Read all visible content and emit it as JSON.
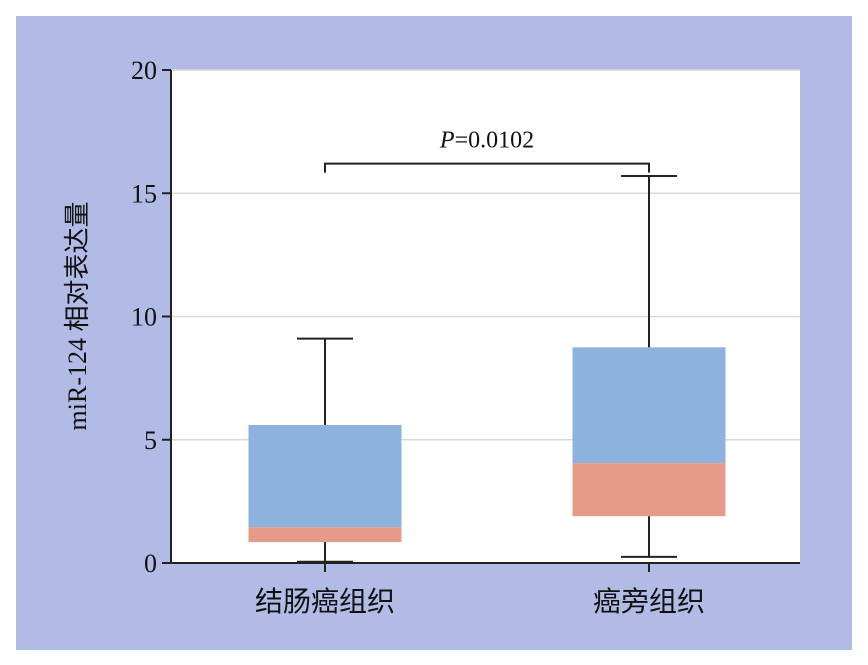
{
  "chart_data": {
    "type": "box",
    "ylabel": "miR-124 相对表达量",
    "ylim": [
      0,
      20
    ],
    "yticks": [
      0,
      5,
      10,
      15,
      20
    ],
    "grid": true,
    "categories": [
      "结肠癌组织",
      "癌旁组织"
    ],
    "boxes": [
      {
        "category": "结肠癌组织",
        "min": 0.05,
        "q1": 0.85,
        "median": 1.45,
        "q3": 5.6,
        "max": 9.1
      },
      {
        "category": "癌旁组织",
        "min": 0.25,
        "q1": 1.9,
        "median": 4.05,
        "q3": 8.75,
        "max": 15.7
      }
    ],
    "annotation": {
      "label_italic": "P",
      "label_rest": "=0.0102",
      "bracket_y": 16.2
    },
    "colors": {
      "background": "#b1bbe5",
      "plot_area": "#ffffff",
      "upper_box": "#8eb2de",
      "lower_box": "#e89a88",
      "grid": "#d9d9d9",
      "axis": "#222222"
    }
  }
}
